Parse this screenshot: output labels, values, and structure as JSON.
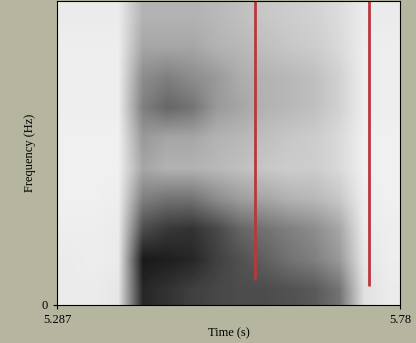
{
  "chart_data": {
    "type": "spectrogram",
    "x_label": "Time (s)",
    "y_label": "Frequency (Hz)",
    "xlim": [
      5.287,
      5.78
    ],
    "xticks": [
      5.287,
      5.78
    ],
    "ylim": [
      0,
      5000
    ],
    "yticks": [
      0
    ],
    "time_edges": [
      5.287,
      5.322,
      5.357,
      5.392,
      5.428,
      5.463,
      5.498,
      5.533,
      5.569,
      5.604,
      5.639,
      5.674,
      5.709,
      5.745,
      5.78
    ],
    "frequency_edges": [
      0,
      500,
      1000,
      1500,
      2000,
      2500,
      3000,
      3500,
      4000,
      4500,
      5000
    ],
    "intensity": [
      [
        0.08,
        0.08,
        0.1,
        0.85,
        0.8,
        0.75,
        0.72,
        0.7,
        0.7,
        0.68,
        0.65,
        0.55,
        0.12,
        0.08
      ],
      [
        0.08,
        0.07,
        0.08,
        0.9,
        0.88,
        0.85,
        0.75,
        0.68,
        0.62,
        0.55,
        0.5,
        0.4,
        0.1,
        0.07
      ],
      [
        0.07,
        0.07,
        0.08,
        0.7,
        0.78,
        0.8,
        0.72,
        0.6,
        0.55,
        0.5,
        0.45,
        0.35,
        0.08,
        0.07
      ],
      [
        0.06,
        0.06,
        0.07,
        0.5,
        0.55,
        0.55,
        0.45,
        0.38,
        0.35,
        0.3,
        0.28,
        0.22,
        0.07,
        0.06
      ],
      [
        0.06,
        0.06,
        0.06,
        0.35,
        0.3,
        0.3,
        0.28,
        0.25,
        0.22,
        0.2,
        0.2,
        0.15,
        0.06,
        0.06
      ],
      [
        0.06,
        0.06,
        0.06,
        0.4,
        0.35,
        0.35,
        0.3,
        0.28,
        0.25,
        0.22,
        0.2,
        0.15,
        0.06,
        0.06
      ],
      [
        0.07,
        0.07,
        0.07,
        0.5,
        0.6,
        0.55,
        0.4,
        0.35,
        0.3,
        0.28,
        0.25,
        0.18,
        0.07,
        0.07
      ],
      [
        0.07,
        0.07,
        0.07,
        0.45,
        0.5,
        0.45,
        0.4,
        0.32,
        0.3,
        0.28,
        0.25,
        0.18,
        0.07,
        0.07
      ],
      [
        0.07,
        0.07,
        0.07,
        0.35,
        0.35,
        0.35,
        0.3,
        0.28,
        0.25,
        0.22,
        0.2,
        0.15,
        0.07,
        0.07
      ],
      [
        0.08,
        0.08,
        0.08,
        0.3,
        0.3,
        0.3,
        0.28,
        0.25,
        0.22,
        0.2,
        0.18,
        0.14,
        0.08,
        0.08
      ]
    ],
    "intensity_range": [
      0,
      1
    ],
    "boundaries": [
      {
        "time": 5.572,
        "from_frequency": 410
      },
      {
        "time": 5.735,
        "from_frequency": 310
      }
    ],
    "color": "#b8383d"
  }
}
